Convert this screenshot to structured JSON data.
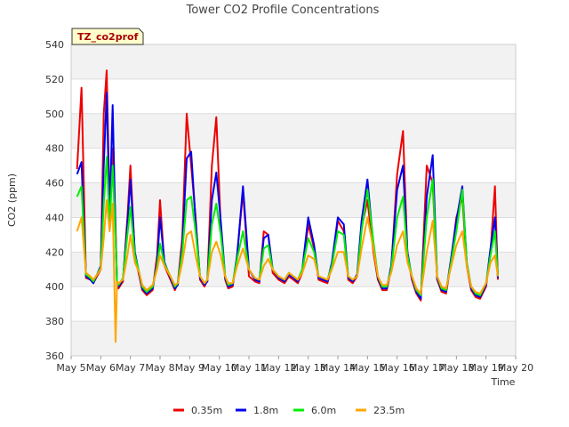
{
  "chart_data": {
    "type": "line",
    "title": "Tower CO2 Profile Concentrations",
    "xlabel": "Time",
    "ylabel": "CO2 (ppm)",
    "badge": "TZ_co2prof",
    "ylim": [
      360,
      540
    ],
    "yticks": [
      360,
      380,
      400,
      420,
      440,
      460,
      480,
      500,
      520,
      540
    ],
    "xlim": [
      5,
      20
    ],
    "xticks": [
      {
        "value": 5,
        "label": "May 5"
      },
      {
        "value": 6,
        "label": "May 6"
      },
      {
        "value": 7,
        "label": "May 7"
      },
      {
        "value": 8,
        "label": "May 8"
      },
      {
        "value": 9,
        "label": "May 9"
      },
      {
        "value": 10,
        "label": "May 10"
      },
      {
        "value": 11,
        "label": "May 11"
      },
      {
        "value": 12,
        "label": "May 12"
      },
      {
        "value": 13,
        "label": "May 13"
      },
      {
        "value": 14,
        "label": "May 14"
      },
      {
        "value": 15,
        "label": "May 15"
      },
      {
        "value": 16,
        "label": "May 16"
      },
      {
        "value": 17,
        "label": "May 17"
      },
      {
        "value": 18,
        "label": "May 18"
      },
      {
        "value": 19,
        "label": "May 19"
      },
      {
        "value": 20,
        "label": "May 20"
      }
    ],
    "legend_position": "bottom",
    "series": [
      {
        "name": "0.35m",
        "color": "#ee0000",
        "x": [
          5.2,
          5.35,
          5.5,
          5.65,
          5.75,
          6.0,
          6.1,
          6.2,
          6.3,
          6.4,
          6.5,
          6.55,
          6.6,
          6.75,
          6.9,
          7.0,
          7.15,
          7.3,
          7.4,
          7.55,
          7.75,
          7.9,
          8.0,
          8.15,
          8.35,
          8.5,
          8.6,
          8.75,
          8.9,
          9.05,
          9.2,
          9.35,
          9.5,
          9.6,
          9.75,
          9.9,
          10.05,
          10.2,
          10.3,
          10.45,
          10.6,
          10.8,
          11.0,
          11.2,
          11.35,
          11.5,
          11.65,
          11.8,
          12.0,
          12.2,
          12.35,
          12.5,
          12.65,
          12.8,
          13.0,
          13.2,
          13.35,
          13.5,
          13.65,
          13.8,
          14.0,
          14.2,
          14.35,
          14.5,
          14.65,
          14.8,
          15.0,
          15.2,
          15.35,
          15.5,
          15.65,
          15.8,
          16.0,
          16.2,
          16.35,
          16.5,
          16.65,
          16.8,
          17.0,
          17.2,
          17.35,
          17.5,
          17.65,
          17.8,
          18.0,
          18.2,
          18.35,
          18.5,
          18.65,
          18.8,
          19.0,
          19.15,
          19.3,
          19.4
        ],
        "values": [
          468,
          515,
          405,
          404,
          402,
          410,
          500,
          525,
          445,
          480,
          435,
          400,
          399,
          403,
          440,
          470,
          418,
          406,
          398,
          395,
          398,
          418,
          450,
          412,
          404,
          398,
          402,
          428,
          500,
          470,
          440,
          404,
          400,
          404,
          470,
          498,
          435,
          404,
          399,
          400,
          418,
          455,
          406,
          403,
          402,
          432,
          430,
          408,
          404,
          402,
          406,
          404,
          402,
          408,
          436,
          422,
          404,
          403,
          402,
          412,
          438,
          432,
          404,
          402,
          406,
          434,
          450,
          420,
          404,
          398,
          398,
          410,
          465,
          490,
          418,
          404,
          396,
          392,
          470,
          460,
          404,
          397,
          396,
          412,
          440,
          452,
          412,
          398,
          394,
          393,
          400,
          420,
          458,
          404
        ]
      },
      {
        "name": "1.8m",
        "color": "#0000ee",
        "x": [
          5.2,
          5.35,
          5.5,
          5.65,
          5.75,
          6.0,
          6.1,
          6.2,
          6.3,
          6.4,
          6.5,
          6.55,
          6.6,
          6.75,
          6.9,
          7.0,
          7.15,
          7.3,
          7.4,
          7.55,
          7.75,
          7.9,
          8.0,
          8.15,
          8.35,
          8.5,
          8.6,
          8.75,
          8.9,
          9.05,
          9.2,
          9.35,
          9.5,
          9.6,
          9.75,
          9.9,
          10.05,
          10.2,
          10.3,
          10.45,
          10.6,
          10.8,
          11.0,
          11.2,
          11.35,
          11.5,
          11.65,
          11.8,
          12.0,
          12.2,
          12.35,
          12.5,
          12.65,
          12.8,
          13.0,
          13.2,
          13.35,
          13.5,
          13.65,
          13.8,
          14.0,
          14.2,
          14.35,
          14.5,
          14.65,
          14.8,
          15.0,
          15.2,
          15.35,
          15.5,
          15.65,
          15.8,
          16.0,
          16.2,
          16.35,
          16.5,
          16.65,
          16.8,
          17.0,
          17.2,
          17.35,
          17.5,
          17.65,
          17.8,
          18.0,
          18.2,
          18.35,
          18.5,
          18.65,
          18.8,
          19.0,
          19.15,
          19.3,
          19.4
        ],
        "values": [
          465,
          472,
          406,
          404,
          402,
          412,
          470,
          512,
          440,
          505,
          430,
          401,
          400,
          404,
          436,
          462,
          420,
          407,
          399,
          396,
          399,
          414,
          440,
          414,
          405,
          399,
          401,
          424,
          474,
          478,
          438,
          405,
          401,
          403,
          450,
          466,
          438,
          405,
          400,
          401,
          418,
          458,
          410,
          404,
          403,
          428,
          430,
          410,
          405,
          403,
          407,
          405,
          403,
          410,
          440,
          424,
          405,
          404,
          403,
          414,
          440,
          436,
          405,
          403,
          407,
          438,
          462,
          424,
          405,
          399,
          399,
          412,
          456,
          470,
          420,
          405,
          397,
          393,
          452,
          476,
          405,
          398,
          397,
          414,
          438,
          458,
          414,
          399,
          395,
          394,
          401,
          422,
          440,
          405
        ]
      },
      {
        "name": "6.0m",
        "color": "#00ee00",
        "x": [
          5.2,
          5.35,
          5.5,
          5.65,
          5.75,
          6.0,
          6.1,
          6.2,
          6.3,
          6.4,
          6.5,
          6.55,
          6.6,
          6.75,
          6.9,
          7.0,
          7.15,
          7.3,
          7.4,
          7.55,
          7.75,
          7.9,
          8.0,
          8.15,
          8.35,
          8.5,
          8.6,
          8.75,
          8.9,
          9.05,
          9.2,
          9.35,
          9.5,
          9.6,
          9.75,
          9.9,
          10.05,
          10.2,
          10.3,
          10.45,
          10.6,
          10.8,
          11.0,
          11.2,
          11.35,
          11.5,
          11.65,
          11.8,
          12.0,
          12.2,
          12.35,
          12.5,
          12.65,
          12.8,
          13.0,
          13.2,
          13.35,
          13.5,
          13.65,
          13.8,
          14.0,
          14.2,
          14.35,
          14.5,
          14.65,
          14.8,
          15.0,
          15.2,
          15.35,
          15.5,
          15.65,
          15.8,
          16.0,
          16.2,
          16.35,
          16.5,
          16.65,
          16.8,
          17.0,
          17.2,
          17.35,
          17.5,
          17.65,
          17.8,
          18.0,
          18.2,
          18.35,
          18.5,
          18.65,
          18.8,
          19.0,
          19.15,
          19.3,
          19.4
        ],
        "values": [
          452,
          458,
          407,
          405,
          403,
          411,
          448,
          475,
          436,
          470,
          428,
          402,
          401,
          405,
          430,
          446,
          418,
          408,
          400,
          397,
          400,
          412,
          425,
          413,
          406,
          400,
          402,
          420,
          450,
          452,
          432,
          406,
          402,
          404,
          436,
          448,
          430,
          406,
          401,
          402,
          416,
          432,
          410,
          405,
          404,
          422,
          424,
          410,
          406,
          404,
          408,
          406,
          404,
          410,
          428,
          420,
          406,
          405,
          404,
          412,
          432,
          430,
          406,
          404,
          406,
          432,
          456,
          426,
          406,
          400,
          400,
          410,
          440,
          452,
          418,
          406,
          398,
          395,
          440,
          462,
          406,
          399,
          398,
          412,
          432,
          456,
          414,
          400,
          396,
          395,
          402,
          418,
          432,
          406
        ]
      },
      {
        "name": "23.5m",
        "color": "#ffa500",
        "x": [
          5.2,
          5.35,
          5.5,
          5.65,
          5.75,
          6.0,
          6.1,
          6.2,
          6.3,
          6.4,
          6.5,
          6.55,
          6.6,
          6.75,
          6.9,
          7.0,
          7.15,
          7.3,
          7.4,
          7.55,
          7.75,
          7.9,
          8.0,
          8.15,
          8.35,
          8.5,
          8.6,
          8.75,
          8.9,
          9.05,
          9.2,
          9.35,
          9.5,
          9.6,
          9.75,
          9.9,
          10.05,
          10.2,
          10.3,
          10.45,
          10.6,
          10.8,
          11.0,
          11.2,
          11.35,
          11.5,
          11.65,
          11.8,
          12.0,
          12.2,
          12.35,
          12.5,
          12.65,
          12.8,
          13.0,
          13.2,
          13.35,
          13.5,
          13.65,
          13.8,
          14.0,
          14.2,
          14.35,
          14.5,
          14.65,
          14.8,
          15.0,
          15.2,
          15.35,
          15.5,
          15.65,
          15.8,
          16.0,
          16.2,
          16.35,
          16.5,
          16.65,
          16.8,
          17.0,
          17.2,
          17.35,
          17.5,
          17.65,
          17.8,
          18.0,
          18.2,
          18.35,
          18.5,
          18.65,
          18.8,
          19.0,
          19.15,
          19.3,
          19.4
        ],
        "values": [
          432,
          440,
          408,
          406,
          404,
          410,
          428,
          450,
          432,
          448,
          368,
          403,
          402,
          404,
          418,
          430,
          414,
          408,
          401,
          398,
          401,
          410,
          418,
          412,
          406,
          401,
          402,
          414,
          430,
          432,
          418,
          406,
          402,
          404,
          420,
          426,
          418,
          406,
          402,
          402,
          412,
          422,
          410,
          405,
          404,
          412,
          416,
          410,
          406,
          404,
          408,
          406,
          404,
          408,
          418,
          416,
          406,
          405,
          404,
          410,
          420,
          420,
          406,
          404,
          406,
          422,
          440,
          422,
          406,
          401,
          401,
          408,
          424,
          432,
          414,
          406,
          399,
          396,
          420,
          438,
          406,
          400,
          399,
          410,
          424,
          432,
          412,
          400,
          397,
          396,
          402,
          414,
          418,
          406
        ]
      }
    ]
  }
}
